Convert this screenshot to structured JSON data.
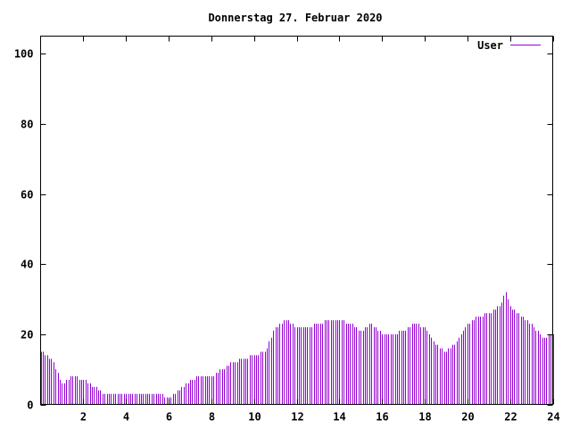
{
  "chart_data": {
    "type": "bar",
    "title": "Donnerstag 27. Februar 2020",
    "xlabel": "",
    "ylabel": "",
    "xlim": [
      0,
      24
    ],
    "ylim": [
      0,
      105
    ],
    "x_ticks": [
      {
        "value": 2,
        "label": "2"
      },
      {
        "value": 4,
        "label": "4"
      },
      {
        "value": 6,
        "label": "6"
      },
      {
        "value": 8,
        "label": "8"
      },
      {
        "value": 10,
        "label": "10"
      },
      {
        "value": 12,
        "label": "12"
      },
      {
        "value": 14,
        "label": "14"
      },
      {
        "value": 16,
        "label": "16"
      },
      {
        "value": 18,
        "label": "18"
      },
      {
        "value": 20,
        "label": "20"
      },
      {
        "value": 22,
        "label": "22"
      },
      {
        "value": 24,
        "label": "24"
      }
    ],
    "y_ticks": [
      {
        "value": 0,
        "label": "0"
      },
      {
        "value": 20,
        "label": "20"
      },
      {
        "value": 40,
        "label": "40"
      },
      {
        "value": 60,
        "label": "60"
      },
      {
        "value": 80,
        "label": "80"
      },
      {
        "value": 100,
        "label": "100"
      }
    ],
    "grid": false,
    "legend_position": "top-right",
    "series": [
      {
        "name": "User",
        "color": "#9400d3",
        "points": [
          [
            0.0,
            15
          ],
          [
            0.5,
            13
          ],
          [
            1.0,
            6
          ],
          [
            1.5,
            8
          ],
          [
            2.0,
            7
          ],
          [
            2.5,
            5
          ],
          [
            3.0,
            3
          ],
          [
            3.5,
            3
          ],
          [
            4.0,
            3
          ],
          [
            4.5,
            3
          ],
          [
            5.0,
            3
          ],
          [
            5.5,
            3
          ],
          [
            6.0,
            2
          ],
          [
            6.5,
            4
          ],
          [
            7.0,
            7
          ],
          [
            7.5,
            8
          ],
          [
            8.0,
            8
          ],
          [
            8.5,
            10
          ],
          [
            9.0,
            12
          ],
          [
            9.5,
            13
          ],
          [
            10.0,
            14
          ],
          [
            10.5,
            15
          ],
          [
            11.0,
            22
          ],
          [
            11.5,
            24
          ],
          [
            12.0,
            22
          ],
          [
            12.5,
            22
          ],
          [
            13.0,
            23
          ],
          [
            13.5,
            24
          ],
          [
            14.0,
            24
          ],
          [
            14.5,
            23
          ],
          [
            15.0,
            21
          ],
          [
            15.5,
            23
          ],
          [
            16.0,
            20
          ],
          [
            16.5,
            20
          ],
          [
            17.0,
            21
          ],
          [
            17.5,
            23
          ],
          [
            18.0,
            22
          ],
          [
            18.5,
            17
          ],
          [
            19.0,
            15
          ],
          [
            19.5,
            18
          ],
          [
            20.0,
            23
          ],
          [
            20.5,
            25
          ],
          [
            21.0,
            26
          ],
          [
            21.5,
            28
          ],
          [
            21.8,
            32
          ],
          [
            22.0,
            28
          ],
          [
            22.5,
            25
          ],
          [
            23.0,
            23
          ],
          [
            23.5,
            19
          ],
          [
            24.0,
            20
          ]
        ]
      }
    ]
  }
}
